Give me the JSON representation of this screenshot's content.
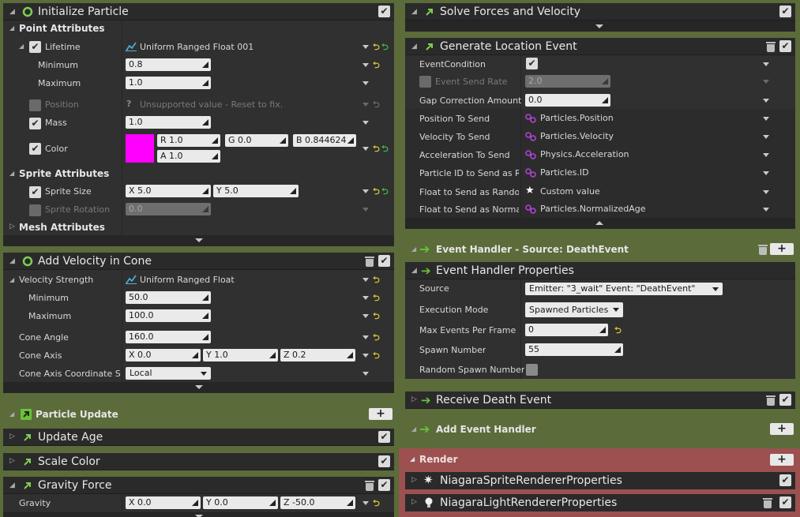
{
  "left": {
    "init_particle": {
      "title": "Initialize Particle",
      "point_attributes": "Point Attributes",
      "lifetime": {
        "label": "Lifetime",
        "value": "Uniform Ranged Float 001"
      },
      "minimum": {
        "label": "Minimum",
        "value": "0.8"
      },
      "maximum": {
        "label": "Maximum",
        "value": "1.0"
      },
      "position": {
        "label": "Position",
        "value": "Unsupported value - Reset to fix."
      },
      "mass": {
        "label": "Mass",
        "value": "1.0"
      },
      "color": {
        "label": "Color",
        "swatch": "#ff00ff",
        "r": "R 1.0",
        "g": "G 0.0",
        "b": "B 0.844624",
        "a": "A 1.0"
      },
      "sprite_attributes": "Sprite Attributes",
      "sprite_size": {
        "label": "Sprite Size",
        "x": "X 5.0",
        "y": "Y 5.0"
      },
      "sprite_rotation": {
        "label": "Sprite Rotation",
        "value": "0.0"
      },
      "mesh_attributes": "Mesh Attributes"
    },
    "add_velocity": {
      "title": "Add Velocity in Cone",
      "velocity_strength": {
        "label": "Velocity Strength",
        "value": "Uniform Ranged Float"
      },
      "minimum": {
        "label": "Minimum",
        "value": "50.0"
      },
      "maximum": {
        "label": "Maximum",
        "value": "100.0"
      },
      "cone_angle": {
        "label": "Cone Angle",
        "value": "160.0"
      },
      "cone_axis": {
        "label": "Cone Axis",
        "x": "X 0.0",
        "y": "Y 1.0",
        "z": "Z 0.2"
      },
      "cone_axis_space": {
        "label": "Cone Axis Coordinate Sp",
        "value": "Local"
      }
    },
    "particle_update": {
      "title": "Particle Update"
    },
    "update_age": {
      "title": "Update Age"
    },
    "scale_color": {
      "title": "Scale Color"
    },
    "gravity_force": {
      "title": "Gravity Force",
      "gravity": {
        "label": "Gravity",
        "x": "X 0.0",
        "y": "Y 0.0",
        "z": "Z -50.0"
      }
    }
  },
  "right": {
    "solve_forces": {
      "title": "Solve Forces and Velocity"
    },
    "generate_location": {
      "title": "Generate Location Event",
      "event_condition": {
        "label": "EventCondition"
      },
      "event_send_rate": {
        "label": "Event Send Rate",
        "value": "2.0"
      },
      "gap_correction": {
        "label": "Gap Correction Amount",
        "value": "0.0"
      },
      "position_to_send": {
        "label": "Position To Send",
        "value": "Particles.Position"
      },
      "velocity_to_send": {
        "label": "Velocity To Send",
        "value": "Particles.Velocity"
      },
      "acceleration_to_send": {
        "label": "Acceleration To Send",
        "value": "Physics.Acceleration"
      },
      "particle_id": {
        "label": "Particle ID to Send as Rit",
        "value": "Particles.ID"
      },
      "float_random": {
        "label": "Float to Send as Random",
        "value": "Custom value"
      },
      "float_normalized": {
        "label": "Float to Send as Normali",
        "value": "Particles.NormalizedAge"
      }
    },
    "event_handler": {
      "title": "Event Handler - Source: DeathEvent"
    },
    "event_handler_props": {
      "title": "Event Handler Properties",
      "source": {
        "label": "Source",
        "value": "Emitter: \"3_wait\" Event: \"DeathEvent\""
      },
      "execution_mode": {
        "label": "Execution Mode",
        "value": "Spawned Particles"
      },
      "max_events": {
        "label": "Max Events Per Frame",
        "value": "0"
      },
      "spawn_number": {
        "label": "Spawn Number",
        "value": "55"
      },
      "random_spawn": {
        "label": "Random Spawn Number"
      }
    },
    "receive_death": {
      "title": "Receive Death Event"
    },
    "add_event_handler": {
      "title": "Add Event Handler"
    },
    "render": {
      "title": "Render",
      "sprite_renderer": "NiagaraSpriteRendererProperties",
      "light_renderer": "NiagaraLightRendererProperties"
    }
  },
  "colors": {
    "background": "#5b6b3a",
    "render_bg": "#9c5050",
    "accent_green": "#3ab84a"
  }
}
